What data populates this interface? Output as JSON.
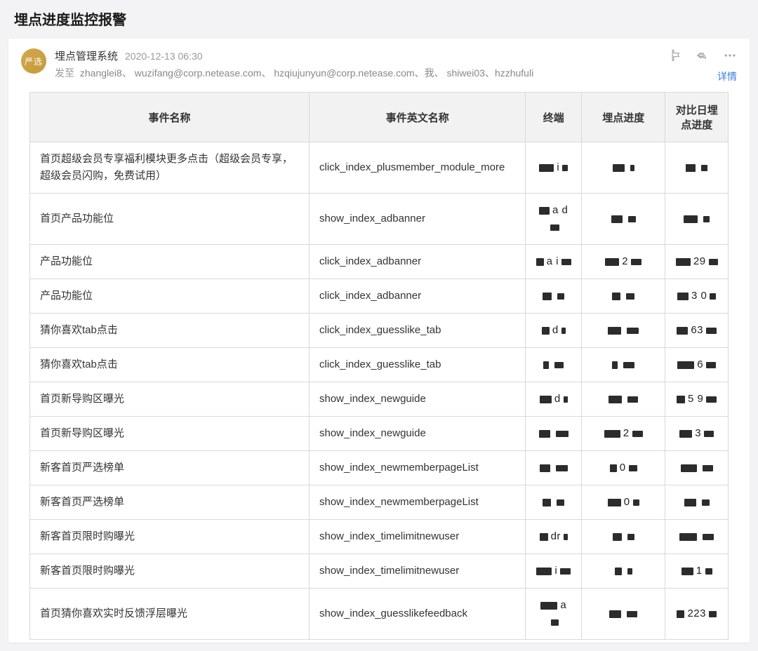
{
  "page": {
    "title": "埋点进度监控报警"
  },
  "email": {
    "avatar_text": "严选",
    "sender_name": "埋点管理系统",
    "timestamp": "2020-12-13 06:30",
    "recipients_label": "发至",
    "recipients": "zhanglei8、 wuzifang@corp.netease.com、 hzqiujunyun@corp.netease.com、我、 shiwei03、hzzhufuli",
    "details_link": "详情"
  },
  "table": {
    "columns": [
      "事件名称",
      "事件英文名称",
      "终端",
      "埋点进度",
      "对比日埋点进度"
    ],
    "column_widths_pct": [
      40,
      31,
      8,
      12,
      9
    ],
    "header_bg": "#f2f2f2",
    "border_color": "#d9d9d9",
    "rows": [
      {
        "event_name": "首页超级会员专享福利模块更多点击（超级会员专享，超级会员闪购，免费试用）",
        "event_en": "click_index_plusmember_module_more",
        "terminal": "i",
        "progress": "",
        "compare": ""
      },
      {
        "event_name": "首页产品功能位",
        "event_en": "show_index_adbanner",
        "terminal": "a    d",
        "progress": "",
        "compare": ""
      },
      {
        "event_name": "产品功能位",
        "event_en": "click_index_adbanner",
        "terminal": "a    i",
        "progress": "2",
        "compare": "29"
      },
      {
        "event_name": "产品功能位",
        "event_en": "click_index_adbanner",
        "terminal": "",
        "progress": "",
        "compare": "3  0"
      },
      {
        "event_name": "猜你喜欢tab点击",
        "event_en": "click_index_guesslike_tab",
        "terminal": "d",
        "progress": "",
        "compare": "63"
      },
      {
        "event_name": "猜你喜欢tab点击",
        "event_en": "click_index_guesslike_tab",
        "terminal": "",
        "progress": "",
        "compare": "6"
      },
      {
        "event_name": "首页新导购区曝光",
        "event_en": "show_index_newguide",
        "terminal": "d",
        "progress": "",
        "compare": "5    9"
      },
      {
        "event_name": "首页新导购区曝光",
        "event_en": "show_index_newguide",
        "terminal": "",
        "progress": "2",
        "compare": "3"
      },
      {
        "event_name": "新客首页严选榜单",
        "event_en": "show_index_newmemberpageList",
        "terminal": "",
        "progress": "0",
        "compare": ""
      },
      {
        "event_name": "新客首页严选榜单",
        "event_en": "show_index_newmemberpageList",
        "terminal": "",
        "progress": "0",
        "compare": ""
      },
      {
        "event_name": "新客首页限时购曝光",
        "event_en": "show_index_timelimitnewuser",
        "terminal": "dr",
        "progress": "",
        "compare": ""
      },
      {
        "event_name": "新客首页限时购曝光",
        "event_en": "show_index_timelimitnewuser",
        "terminal": "i",
        "progress": "",
        "compare": "1"
      },
      {
        "event_name": "首页猜你喜欢实时反馈浮层曝光",
        "event_en": "show_index_guesslikefeedback",
        "terminal": "a",
        "progress": "",
        "compare": "223"
      }
    ]
  },
  "colors": {
    "page_bg": "#f3f3f5",
    "card_bg": "#ffffff",
    "text_primary": "#333333",
    "text_secondary": "#999999",
    "link": "#3a7de0",
    "avatar_bg": "#c59a3e"
  }
}
